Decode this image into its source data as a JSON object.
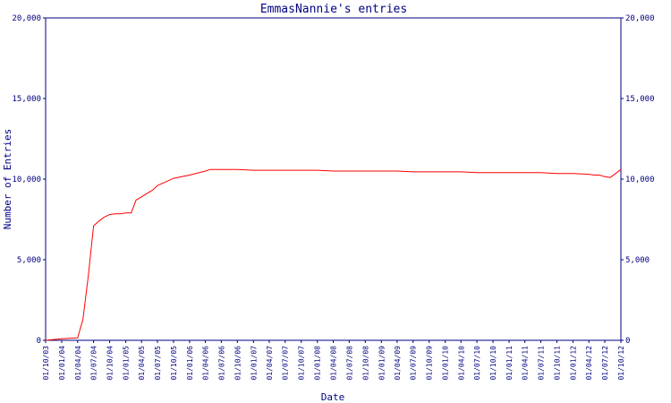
{
  "colors": {
    "background": "#ffffff",
    "axis": "#000080",
    "text": "#000080",
    "series": "#ff0000"
  },
  "chart_data": {
    "type": "line",
    "title": "EmmasNannie's entries",
    "xlabel": "Date",
    "ylabel": "Number of Entries",
    "ylim": [
      0,
      20000
    ],
    "y_ticks": [
      "0",
      "5,000",
      "10,000",
      "15,000",
      "20,000"
    ],
    "y_tick_values": [
      0,
      5000,
      10000,
      15000,
      20000
    ],
    "x_tick_labels": [
      "01/10/03",
      "01/01/04",
      "01/04/04",
      "01/07/04",
      "01/10/04",
      "01/01/05",
      "01/04/05",
      "01/07/05",
      "01/10/05",
      "01/01/06",
      "01/04/06",
      "01/07/06",
      "01/10/06",
      "01/01/07",
      "01/04/07",
      "01/07/07",
      "01/10/07",
      "01/01/08",
      "01/04/08",
      "01/07/08",
      "01/10/08",
      "01/01/09",
      "01/04/09",
      "01/07/09",
      "01/10/09",
      "01/01/10",
      "01/04/10",
      "01/07/10",
      "01/10/10",
      "01/01/11",
      "01/04/11",
      "01/07/11",
      "01/10/11",
      "01/01/12",
      "01/04/12",
      "01/07/12",
      "01/10/12"
    ],
    "grid": false,
    "series": [
      {
        "color": "#ff0000",
        "x": [
          "2003-10-01",
          "2004-01-01",
          "2004-04-01",
          "2004-05-01",
          "2004-06-01",
          "2004-07-01",
          "2004-08-01",
          "2004-09-01",
          "2004-10-01",
          "2004-11-01",
          "2004-12-01",
          "2005-01-01",
          "2005-02-01",
          "2005-03-01",
          "2005-04-01",
          "2005-05-01",
          "2005-06-01",
          "2005-07-01",
          "2005-09-01",
          "2005-10-01",
          "2006-01-01",
          "2006-04-01",
          "2006-05-01",
          "2006-07-01",
          "2006-10-01",
          "2007-01-01",
          "2007-04-01",
          "2007-07-01",
          "2007-10-01",
          "2008-01-01",
          "2008-04-01",
          "2008-07-01",
          "2008-10-01",
          "2009-01-01",
          "2009-04-01",
          "2009-07-01",
          "2009-10-01",
          "2010-01-01",
          "2010-04-01",
          "2010-07-01",
          "2010-10-01",
          "2011-01-01",
          "2011-04-01",
          "2011-07-01",
          "2011-10-01",
          "2012-01-01",
          "2012-04-01",
          "2012-05-01",
          "2012-06-01",
          "2012-07-01",
          "2012-08-01",
          "2012-09-01",
          "2012-10-01"
        ],
        "y": [
          0,
          100,
          150,
          1300,
          4000,
          7100,
          7400,
          7650,
          7800,
          7850,
          7850,
          7900,
          7900,
          8700,
          8900,
          9100,
          9300,
          9600,
          9900,
          10050,
          10250,
          10500,
          10600,
          10600,
          10600,
          10550,
          10550,
          10550,
          10550,
          10550,
          10500,
          10500,
          10500,
          10500,
          10500,
          10450,
          10450,
          10450,
          10450,
          10400,
          10400,
          10400,
          10400,
          10400,
          10350,
          10350,
          10300,
          10250,
          10250,
          10150,
          10100,
          10350,
          10600
        ]
      }
    ]
  }
}
